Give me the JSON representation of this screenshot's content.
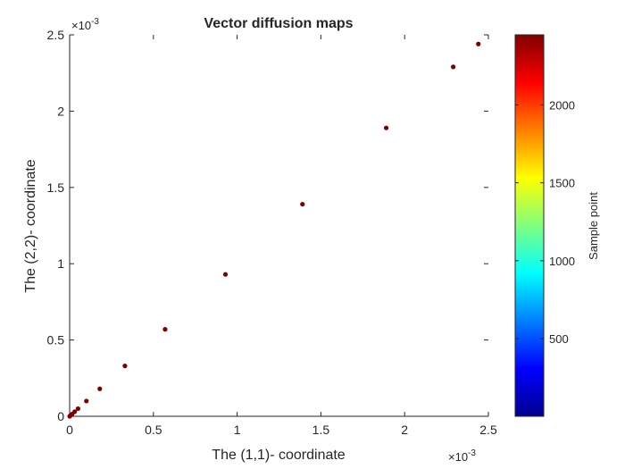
{
  "chart_data": {
    "type": "scatter",
    "title": "Vector diffusion maps",
    "xlabel": "The (1,1)- coordinate",
    "ylabel": "The (2,2)- coordinate",
    "x_scale_label": "×10",
    "x_scale_exp": "-3",
    "y_scale_label": "×10",
    "y_scale_exp": "-3",
    "xlim": [
      0,
      2.5
    ],
    "ylim": [
      0,
      2.5
    ],
    "x_ticks": [
      "0",
      "0.5",
      "1",
      "1.5",
      "2",
      "2.5"
    ],
    "y_ticks": [
      "0",
      "0.5",
      "1",
      "1.5",
      "2",
      "2.5"
    ],
    "x_tick_values": [
      0,
      0.5,
      1,
      1.5,
      2,
      2.5
    ],
    "y_tick_values": [
      0,
      0.5,
      1,
      1.5,
      2,
      2.5
    ],
    "grid": false,
    "marker_color": "#800000",
    "points": [
      {
        "x": 2.44,
        "y": 2.44
      },
      {
        "x": 2.29,
        "y": 2.29
      },
      {
        "x": 1.89,
        "y": 1.89
      },
      {
        "x": 1.39,
        "y": 1.39
      },
      {
        "x": 0.93,
        "y": 0.93
      },
      {
        "x": 0.57,
        "y": 0.57
      },
      {
        "x": 0.33,
        "y": 0.33
      },
      {
        "x": 0.18,
        "y": 0.18
      },
      {
        "x": 0.1,
        "y": 0.1
      },
      {
        "x": 0.05,
        "y": 0.05
      },
      {
        "x": 0.03,
        "y": 0.03
      },
      {
        "x": 0.015,
        "y": 0.015
      },
      {
        "x": 0.008,
        "y": 0.008
      },
      {
        "x": 0.004,
        "y": 0.004
      },
      {
        "x": 0.0,
        "y": 0.0
      }
    ],
    "colorbar": {
      "label": "Sample point",
      "colormap": "jet",
      "range": [
        1,
        2450
      ],
      "ticks": [
        "500",
        "1000",
        "1500",
        "2000"
      ],
      "tick_values": [
        500,
        1000,
        1500,
        2000
      ]
    }
  }
}
